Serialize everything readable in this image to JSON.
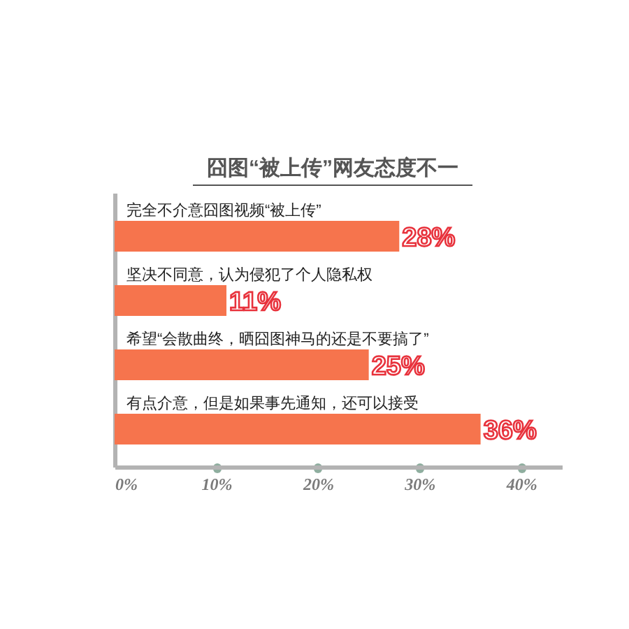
{
  "chart_data": {
    "type": "bar",
    "orientation": "horizontal",
    "title": "囧图“被上传”网友态度不一",
    "categories": [
      "完全不介意囧图视频“被上传”",
      "坚决不同意，认为侵犯了个人隐私权",
      "希望“会散曲终，晒囧图神马的还是不要搞了”",
      "有点介意，但是如果事先通知，还可以接受"
    ],
    "values": [
      28,
      11,
      25,
      36
    ],
    "color": "#f6744d",
    "value_labels": [
      "28%",
      "11%",
      "25%",
      "36%"
    ],
    "xlim": [
      0,
      44
    ],
    "xticks": [
      {
        "value": 0,
        "label": "0%"
      },
      {
        "value": 10,
        "label": "10%"
      },
      {
        "value": 20,
        "label": "20%"
      },
      {
        "value": 30,
        "label": "30%"
      },
      {
        "value": 40,
        "label": "40%"
      }
    ]
  }
}
